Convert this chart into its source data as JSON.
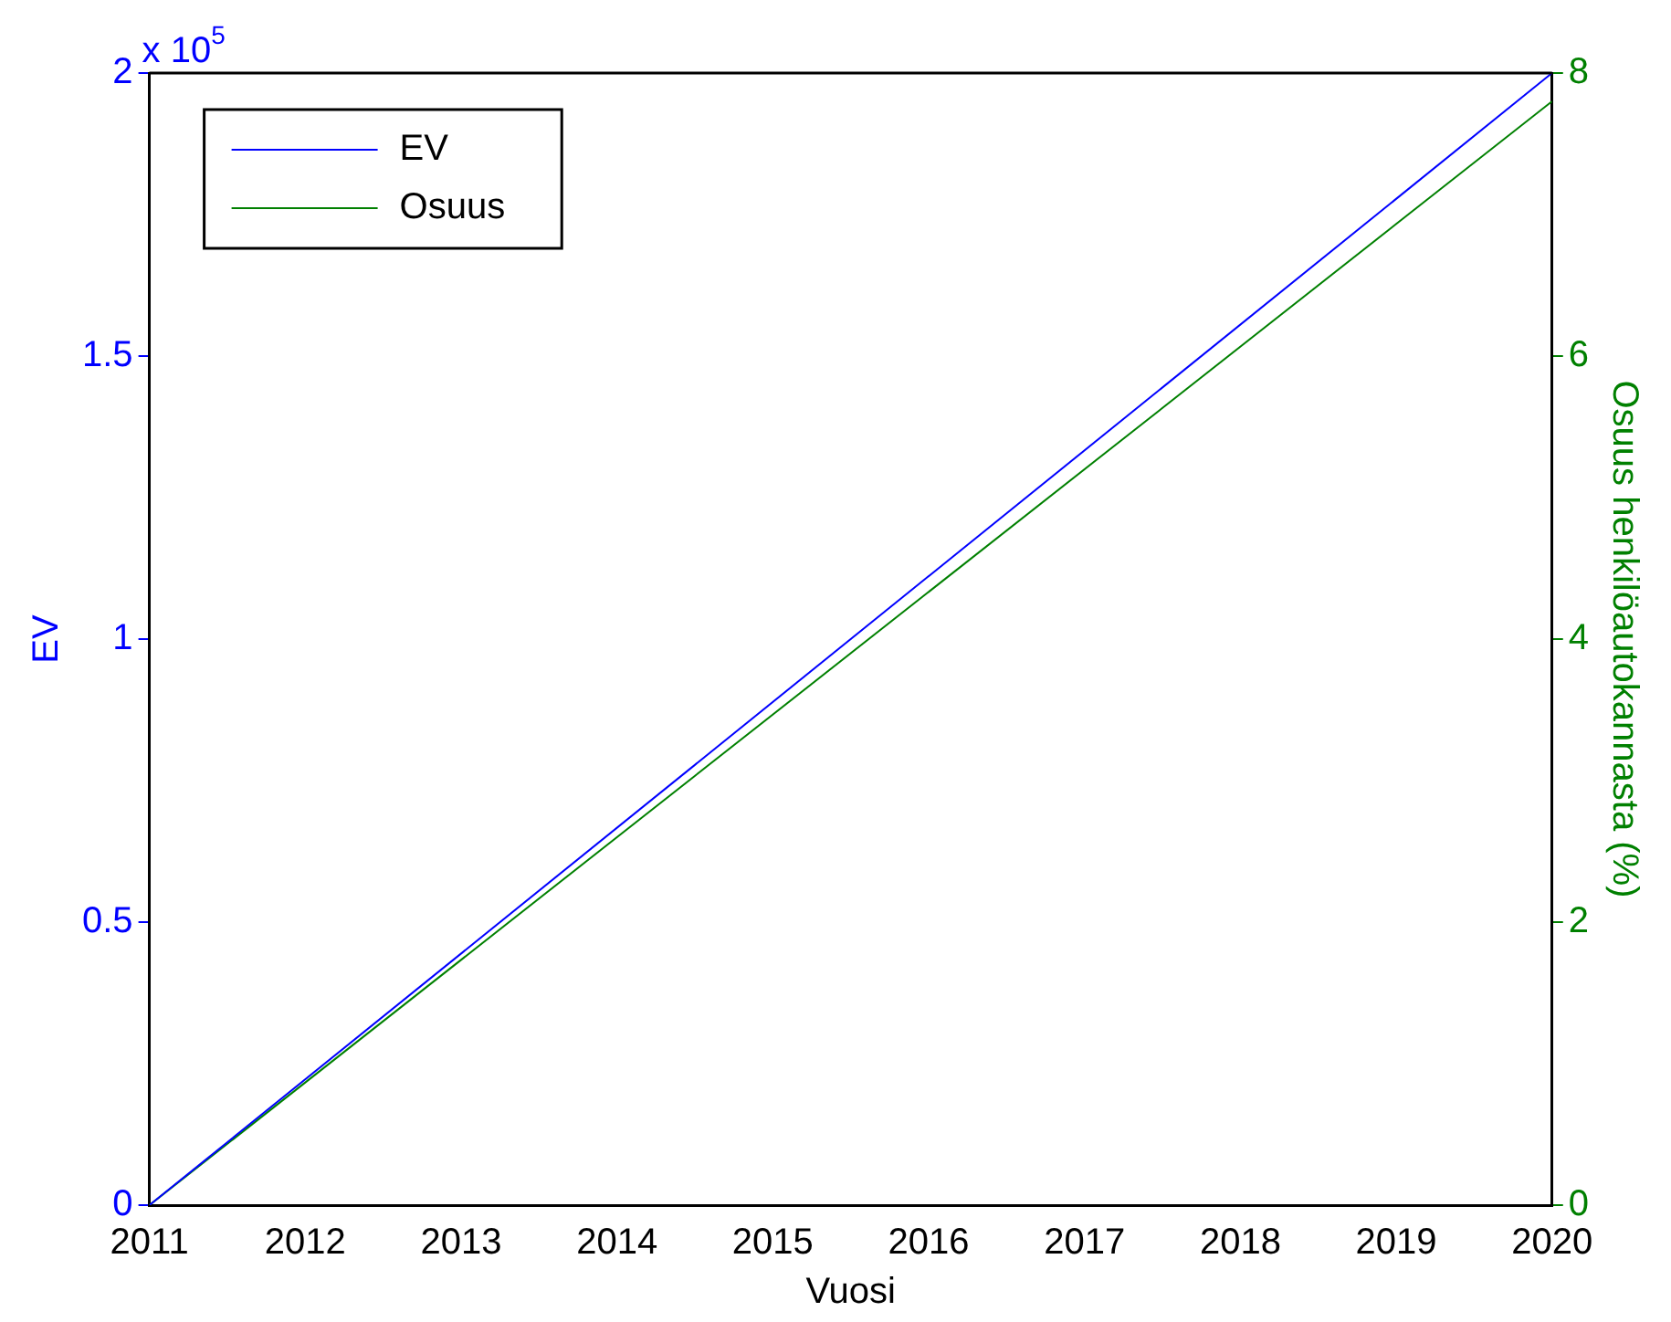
{
  "chart_data": {
    "type": "line",
    "xlabel": "Vuosi",
    "ylabel": "EV",
    "y2label": "Osuus henkilöautokannasta (%)",
    "x": [
      2011,
      2020
    ],
    "series": [
      {
        "name": "EV",
        "color": "#0000ff",
        "values": [
          0,
          2
        ]
      },
      {
        "name": "Osuus",
        "color": "#008000",
        "values": [
          0,
          7.8
        ],
        "axis": "y2"
      }
    ],
    "xlim": [
      2011,
      2020
    ],
    "xticks": [
      2011,
      2012,
      2013,
      2014,
      2015,
      2016,
      2017,
      2018,
      2019,
      2020
    ],
    "ylim": [
      0,
      2
    ],
    "yticks": [
      0,
      0.5,
      1,
      1.5,
      2
    ],
    "y2lim": [
      0,
      8
    ],
    "y2ticks": [
      0,
      2,
      4,
      6,
      8
    ],
    "annotations": [
      "x 10$^{5}$"
    ],
    "legend": "top left",
    "grid": false,
    "marker": "none",
    "line_style": "solid"
  }
}
